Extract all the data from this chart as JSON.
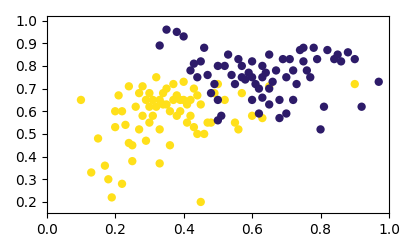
{
  "yellow_x": [
    0.1,
    0.13,
    0.15,
    0.17,
    0.18,
    0.19,
    0.2,
    0.2,
    0.21,
    0.22,
    0.22,
    0.23,
    0.24,
    0.24,
    0.25,
    0.25,
    0.26,
    0.27,
    0.27,
    0.28,
    0.28,
    0.29,
    0.29,
    0.3,
    0.3,
    0.3,
    0.31,
    0.31,
    0.32,
    0.32,
    0.33,
    0.33,
    0.33,
    0.34,
    0.34,
    0.35,
    0.35,
    0.36,
    0.36,
    0.37,
    0.37,
    0.38,
    0.38,
    0.39,
    0.39,
    0.4,
    0.4,
    0.41,
    0.41,
    0.42,
    0.42,
    0.43,
    0.43,
    0.44,
    0.44,
    0.45,
    0.45,
    0.46,
    0.47,
    0.48,
    0.49,
    0.5,
    0.52,
    0.55,
    0.56,
    0.57,
    0.6,
    0.63,
    0.65,
    0.9
  ],
  "yellow_y": [
    0.65,
    0.33,
    0.48,
    0.36,
    0.3,
    0.22,
    0.6,
    0.53,
    0.67,
    0.6,
    0.28,
    0.54,
    0.46,
    0.71,
    0.45,
    0.38,
    0.62,
    0.68,
    0.52,
    0.58,
    0.71,
    0.65,
    0.47,
    0.68,
    0.62,
    0.55,
    0.58,
    0.65,
    0.75,
    0.62,
    0.65,
    0.52,
    0.37,
    0.63,
    0.68,
    0.63,
    0.7,
    0.6,
    0.45,
    0.65,
    0.72,
    0.58,
    0.67,
    0.6,
    0.65,
    0.65,
    0.73,
    0.63,
    0.55,
    0.58,
    0.65,
    0.53,
    0.7,
    0.67,
    0.5,
    0.63,
    0.2,
    0.5,
    0.55,
    0.55,
    0.68,
    0.72,
    0.65,
    0.55,
    0.52,
    0.68,
    0.58,
    0.57,
    0.71,
    0.72
  ],
  "purple_x": [
    0.33,
    0.35,
    0.38,
    0.4,
    0.42,
    0.43,
    0.44,
    0.45,
    0.46,
    0.47,
    0.48,
    0.49,
    0.5,
    0.5,
    0.5,
    0.51,
    0.52,
    0.53,
    0.54,
    0.55,
    0.56,
    0.57,
    0.57,
    0.58,
    0.59,
    0.6,
    0.6,
    0.6,
    0.61,
    0.62,
    0.62,
    0.63,
    0.63,
    0.63,
    0.64,
    0.65,
    0.65,
    0.65,
    0.66,
    0.67,
    0.68,
    0.68,
    0.69,
    0.7,
    0.7,
    0.71,
    0.72,
    0.72,
    0.73,
    0.74,
    0.75,
    0.75,
    0.76,
    0.77,
    0.78,
    0.79,
    0.8,
    0.81,
    0.82,
    0.84,
    0.85,
    0.86,
    0.88,
    0.9,
    0.92,
    0.97
  ],
  "purple_y": [
    0.89,
    0.96,
    0.95,
    0.93,
    0.78,
    0.81,
    0.75,
    0.82,
    0.88,
    0.76,
    0.68,
    0.72,
    0.8,
    0.65,
    0.56,
    0.58,
    0.8,
    0.85,
    0.76,
    0.72,
    0.83,
    0.75,
    0.8,
    0.74,
    0.77,
    0.82,
    0.75,
    0.65,
    0.72,
    0.59,
    0.7,
    0.75,
    0.66,
    0.8,
    0.77,
    0.63,
    0.85,
    0.7,
    0.73,
    0.78,
    0.57,
    0.65,
    0.83,
    0.75,
    0.59,
    0.83,
    0.65,
    0.78,
    0.72,
    0.87,
    0.82,
    0.88,
    0.78,
    0.75,
    0.88,
    0.83,
    0.52,
    0.62,
    0.87,
    0.83,
    0.85,
    0.82,
    0.86,
    0.83,
    0.62,
    0.73
  ],
  "yellow_color": "#FFE01A",
  "purple_color": "#2D1B69",
  "marker_size": 36,
  "xlim": [
    0.0,
    1.0
  ],
  "ylim": [
    0.15,
    1.02
  ],
  "xticks": [
    0.0,
    0.2,
    0.4,
    0.6,
    0.8,
    1.0
  ],
  "yticks": [
    0.2,
    0.3,
    0.4,
    0.5,
    0.6,
    0.7,
    0.8,
    0.9,
    1.0
  ]
}
